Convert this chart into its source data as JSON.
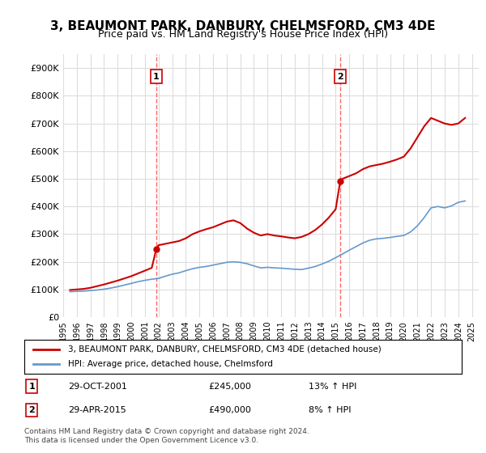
{
  "title": "3, BEAUMONT PARK, DANBURY, CHELMSFORD, CM3 4DE",
  "subtitle": "Price paid vs. HM Land Registry's House Price Index (HPI)",
  "ylabel_ticks": [
    "£0",
    "£100K",
    "£200K",
    "£300K",
    "£400K",
    "£500K",
    "£600K",
    "£700K",
    "£800K",
    "£900K"
  ],
  "ytick_values": [
    0,
    100000,
    200000,
    300000,
    400000,
    500000,
    600000,
    700000,
    800000,
    900000
  ],
  "ylim": [
    0,
    950000
  ],
  "xlim_start": 1995.0,
  "xlim_end": 2025.5,
  "xtick_years": [
    1995,
    1996,
    1997,
    1998,
    1999,
    2000,
    2001,
    2002,
    2003,
    2004,
    2005,
    2006,
    2007,
    2008,
    2009,
    2010,
    2011,
    2012,
    2013,
    2014,
    2015,
    2016,
    2017,
    2018,
    2019,
    2020,
    2021,
    2022,
    2023,
    2024,
    2025
  ],
  "purchase1_x": 2001.83,
  "purchase1_y": 245000,
  "purchase1_label": "1",
  "purchase2_x": 2015.33,
  "purchase2_y": 490000,
  "purchase2_label": "2",
  "vline1_x": 2001.83,
  "vline2_x": 2015.33,
  "vline_color": "#ff6666",
  "red_line_color": "#cc0000",
  "blue_line_color": "#6699cc",
  "legend_red_label": "3, BEAUMONT PARK, DANBURY, CHELMSFORD, CM3 4DE (detached house)",
  "legend_blue_label": "HPI: Average price, detached house, Chelmsford",
  "annotation1_date": "29-OCT-2001",
  "annotation1_price": "£245,000",
  "annotation1_hpi": "13% ↑ HPI",
  "annotation2_date": "29-APR-2015",
  "annotation2_price": "£490,000",
  "annotation2_hpi": "8% ↑ HPI",
  "footnote": "Contains HM Land Registry data © Crown copyright and database right 2024.\nThis data is licensed under the Open Government Licence v3.0.",
  "background_color": "#ffffff",
  "grid_color": "#dddddd",
  "title_fontsize": 11,
  "subtitle_fontsize": 9,
  "hpi_years": [
    1995.5,
    1996.0,
    1996.5,
    1997.0,
    1997.5,
    1998.0,
    1998.5,
    1999.0,
    1999.5,
    2000.0,
    2000.5,
    2001.0,
    2001.5,
    2002.0,
    2002.5,
    2003.0,
    2003.5,
    2004.0,
    2004.5,
    2005.0,
    2005.5,
    2006.0,
    2006.5,
    2007.0,
    2007.5,
    2008.0,
    2008.5,
    2009.0,
    2009.5,
    2010.0,
    2010.5,
    2011.0,
    2011.5,
    2012.0,
    2012.5,
    2013.0,
    2013.5,
    2014.0,
    2014.5,
    2015.0,
    2015.5,
    2016.0,
    2016.5,
    2017.0,
    2017.5,
    2018.0,
    2018.5,
    2019.0,
    2019.5,
    2020.0,
    2020.5,
    2021.0,
    2021.5,
    2022.0,
    2022.5,
    2023.0,
    2023.5,
    2024.0,
    2024.5
  ],
  "hpi_values": [
    92000,
    93000,
    94000,
    96000,
    98000,
    101000,
    105000,
    110000,
    116000,
    122000,
    128000,
    133000,
    137000,
    140000,
    148000,
    155000,
    160000,
    168000,
    175000,
    180000,
    183000,
    188000,
    193000,
    198000,
    200000,
    198000,
    193000,
    185000,
    178000,
    180000,
    178000,
    177000,
    175000,
    173000,
    172000,
    177000,
    183000,
    192000,
    202000,
    215000,
    228000,
    242000,
    255000,
    268000,
    278000,
    283000,
    285000,
    288000,
    292000,
    295000,
    308000,
    330000,
    360000,
    395000,
    400000,
    395000,
    402000,
    415000,
    420000
  ],
  "price_years": [
    1995.5,
    1996.0,
    1996.5,
    1997.0,
    1997.5,
    1998.0,
    1998.5,
    1999.0,
    1999.5,
    2000.0,
    2000.5,
    2001.0,
    2001.5,
    2001.83,
    2002.0,
    2002.5,
    2003.0,
    2003.5,
    2004.0,
    2004.5,
    2005.0,
    2005.5,
    2006.0,
    2006.5,
    2007.0,
    2007.5,
    2008.0,
    2008.5,
    2009.0,
    2009.5,
    2010.0,
    2010.5,
    2011.0,
    2011.5,
    2012.0,
    2012.5,
    2013.0,
    2013.5,
    2014.0,
    2014.5,
    2015.0,
    2015.33,
    2015.5,
    2016.0,
    2016.5,
    2017.0,
    2017.5,
    2018.0,
    2018.5,
    2019.0,
    2019.5,
    2020.0,
    2020.5,
    2021.0,
    2021.5,
    2022.0,
    2022.5,
    2023.0,
    2023.5,
    2024.0,
    2024.5
  ],
  "price_values": [
    98000,
    100000,
    102000,
    106000,
    112000,
    118000,
    125000,
    132000,
    140000,
    148000,
    158000,
    168000,
    178000,
    245000,
    260000,
    265000,
    270000,
    275000,
    285000,
    300000,
    310000,
    318000,
    325000,
    335000,
    345000,
    350000,
    340000,
    320000,
    305000,
    295000,
    300000,
    295000,
    292000,
    288000,
    285000,
    290000,
    300000,
    315000,
    335000,
    360000,
    390000,
    490000,
    500000,
    510000,
    520000,
    535000,
    545000,
    550000,
    555000,
    562000,
    570000,
    580000,
    610000,
    650000,
    690000,
    720000,
    710000,
    700000,
    695000,
    700000,
    720000
  ]
}
